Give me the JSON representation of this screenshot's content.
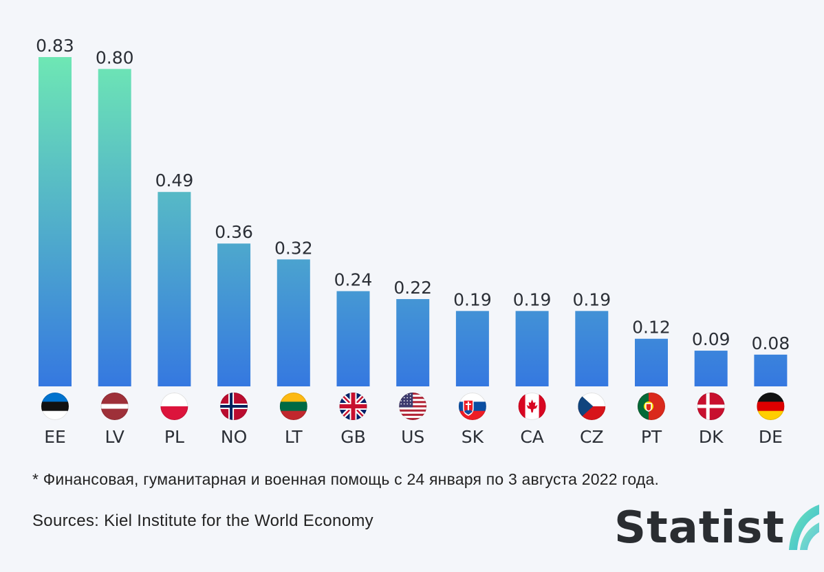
{
  "chart_data": {
    "type": "bar",
    "categories": [
      "EE",
      "LV",
      "PL",
      "NO",
      "LT",
      "GB",
      "US",
      "SK",
      "CA",
      "CZ",
      "PT",
      "DK",
      "DE"
    ],
    "values": [
      0.83,
      0.8,
      0.49,
      0.36,
      0.32,
      0.24,
      0.22,
      0.19,
      0.19,
      0.19,
      0.12,
      0.09,
      0.08
    ],
    "value_labels": [
      "0.83",
      "0.80",
      "0.49",
      "0.36",
      "0.32",
      "0.24",
      "0.22",
      "0.19",
      "0.19",
      "0.19",
      "0.12",
      "0.09",
      "0.08"
    ],
    "title": "",
    "xlabel": "",
    "ylabel": "",
    "ylim": [
      0,
      0.83
    ],
    "grid": false,
    "legend": "none",
    "bar_gradient": {
      "high": "#6ee7b4",
      "low": "#3578e0"
    },
    "flags": [
      "estonia-flag-icon",
      "latvia-flag-icon",
      "poland-flag-icon",
      "norway-flag-icon",
      "lithuania-flag-icon",
      "united-kingdom-flag-icon",
      "united-states-flag-icon",
      "slovakia-flag-icon",
      "canada-flag-icon",
      "czech-republic-flag-icon",
      "portugal-flag-icon",
      "denmark-flag-icon",
      "germany-flag-icon"
    ]
  },
  "footer": {
    "footnote": "* Финансовая, гуманитарная и военная помощь с 24 января по 3 августа 2022 года.",
    "sources": "Sources: Kiel Institute for the World Economy",
    "brand": "Statist"
  }
}
